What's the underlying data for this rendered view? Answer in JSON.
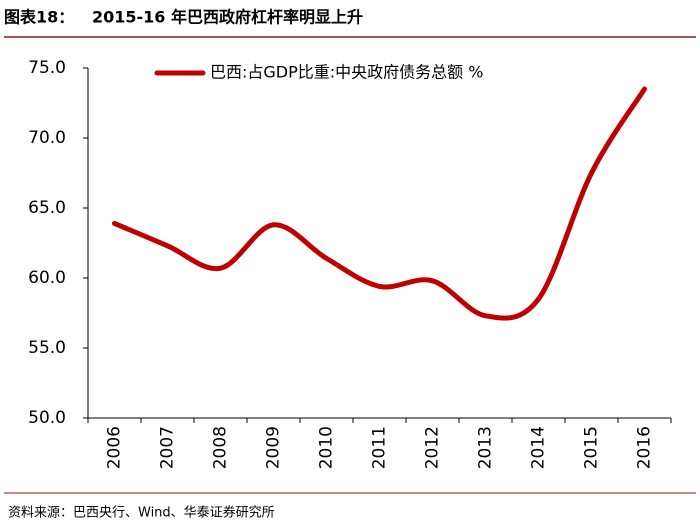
{
  "label": "图表18：",
  "source": "资料来源：巴西央行、Wind、华泰证券研究所",
  "chart_data": {
    "type": "line",
    "title": "2015-16 年巴西政府杠杆率明显上升",
    "categories": [
      "2006",
      "2007",
      "2008",
      "2009",
      "2010",
      "2011",
      "2012",
      "2013",
      "2014",
      "2015",
      "2016"
    ],
    "series": [
      {
        "name": "巴西:占GDP比重:中央政府债务总额 %",
        "color": "#c00000",
        "values": [
          63.9,
          62.3,
          60.7,
          63.8,
          61.4,
          59.4,
          59.8,
          57.3,
          58.5,
          67.5,
          73.5
        ]
      }
    ],
    "ylim": [
      50,
      75
    ],
    "yticks": [
      {
        "value": 50,
        "label": "50.0"
      },
      {
        "value": 55,
        "label": "55.0"
      },
      {
        "value": 60,
        "label": "60.0"
      },
      {
        "value": 65,
        "label": "65.0"
      },
      {
        "value": 70,
        "label": "70.0"
      },
      {
        "value": 75,
        "label": "75.0"
      }
    ],
    "legend": "top-left",
    "grid": false
  }
}
